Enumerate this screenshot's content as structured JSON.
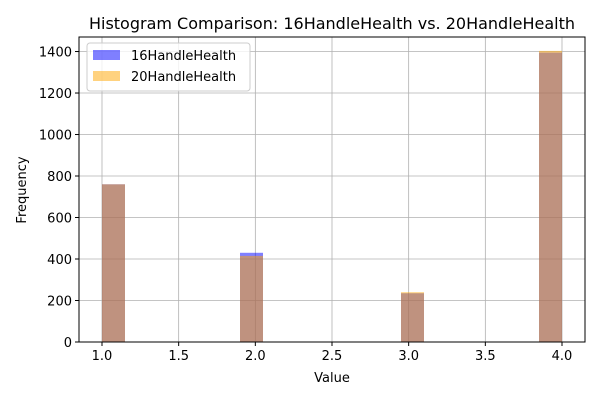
{
  "chart_data": {
    "type": "bar",
    "title": "Histogram Comparison: 16HandleHealth vs. 20HandleHealth",
    "xlabel": "Value",
    "ylabel": "Frequency",
    "xlim": [
      0.85,
      4.15
    ],
    "ylim": [
      0,
      1470
    ],
    "xticks": [
      1.0,
      1.5,
      2.0,
      2.5,
      3.0,
      3.5,
      4.0
    ],
    "xtick_labels": [
      "1.0",
      "1.5",
      "2.0",
      "2.5",
      "3.0",
      "3.5",
      "4.0"
    ],
    "yticks": [
      0,
      200,
      400,
      600,
      800,
      1000,
      1200,
      1400
    ],
    "ytick_labels": [
      "0",
      "200",
      "400",
      "600",
      "800",
      "1000",
      "1200",
      "1400"
    ],
    "grid": true,
    "legend_position": "top-left",
    "bin_width": 0.15,
    "series": [
      {
        "name": "16HandleHealth",
        "color": "#0000ff",
        "opacity": 0.5,
        "bins": [
          {
            "x0": 1.0,
            "x1": 1.15,
            "count": 760
          },
          {
            "x0": 1.9,
            "x1": 2.05,
            "count": 430
          },
          {
            "x0": 2.95,
            "x1": 3.1,
            "count": 235
          },
          {
            "x0": 3.85,
            "x1": 4.0,
            "count": 1395
          }
        ]
      },
      {
        "name": "20HandleHealth",
        "color": "#ffa500",
        "opacity": 0.5,
        "bins": [
          {
            "x0": 1.0,
            "x1": 1.15,
            "count": 760
          },
          {
            "x0": 1.9,
            "x1": 2.05,
            "count": 415
          },
          {
            "x0": 2.95,
            "x1": 3.1,
            "count": 240
          },
          {
            "x0": 3.85,
            "x1": 4.0,
            "count": 1403
          }
        ]
      }
    ]
  }
}
